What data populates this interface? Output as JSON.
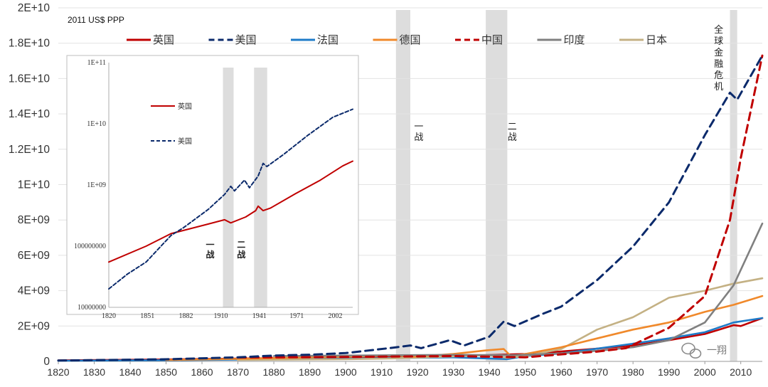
{
  "chart_data": {
    "type": "line",
    "title": "",
    "unit_label": "2011 US$ PPP",
    "xlim": [
      1820,
      2016
    ],
    "ylim": [
      0,
      20000000000
    ],
    "x_ticks": [
      1820,
      1830,
      1840,
      1850,
      1860,
      1870,
      1880,
      1890,
      1900,
      1910,
      1920,
      1930,
      1940,
      1950,
      1960,
      1970,
      1980,
      1990,
      2000,
      2010
    ],
    "y_tick_values": [
      0,
      2000000000,
      4000000000,
      6000000000,
      8000000000,
      10000000000,
      12000000000,
      14000000000,
      16000000000,
      18000000000,
      20000000000
    ],
    "y_tick_labels": [
      "0",
      "2E+09",
      "4E+09",
      "6E+09",
      "8E+09",
      "1E+10",
      "1.2E+10",
      "1.4E+10",
      "1.6E+10",
      "1.8E+10",
      "2E+10"
    ],
    "shaded_periods": [
      {
        "label": "一战",
        "start": 1914,
        "end": 1918
      },
      {
        "label": "二战",
        "start": 1939,
        "end": 1945
      },
      {
        "label": "全球金融危机",
        "start": 2007,
        "end": 2009
      }
    ],
    "series": [
      {
        "name": "英国",
        "color": "#C00000",
        "dash": "solid",
        "points": [
          [
            1820,
            60000000
          ],
          [
            1850,
            110000000
          ],
          [
            1870,
            160000000
          ],
          [
            1900,
            230000000
          ],
          [
            1913,
            270000000
          ],
          [
            1930,
            300000000
          ],
          [
            1950,
            420000000
          ],
          [
            1960,
            560000000
          ],
          [
            1970,
            720000000
          ],
          [
            1980,
            900000000
          ],
          [
            1990,
            1200000000
          ],
          [
            2000,
            1550000000
          ],
          [
            2008,
            2050000000
          ],
          [
            2010,
            2000000000
          ],
          [
            2016,
            2450000000
          ]
        ]
      },
      {
        "name": "美国",
        "color": "#0B2A6B",
        "dash": "dash",
        "points": [
          [
            1820,
            50000000
          ],
          [
            1850,
            120000000
          ],
          [
            1870,
            230000000
          ],
          [
            1880,
            330000000
          ],
          [
            1890,
            380000000
          ],
          [
            1900,
            470000000
          ],
          [
            1913,
            770000000
          ],
          [
            1918,
            900000000
          ],
          [
            1921,
            750000000
          ],
          [
            1929,
            1200000000
          ],
          [
            1933,
            900000000
          ],
          [
            1940,
            1400000000
          ],
          [
            1944,
            2250000000
          ],
          [
            1947,
            2000000000
          ],
          [
            1955,
            2700000000
          ],
          [
            1960,
            3100000000
          ],
          [
            1970,
            4600000000
          ],
          [
            1980,
            6500000000
          ],
          [
            1990,
            9000000000
          ],
          [
            2000,
            12800000000
          ],
          [
            2007,
            15200000000
          ],
          [
            2009,
            14800000000
          ],
          [
            2016,
            17300000000
          ]
        ]
      },
      {
        "name": "法国",
        "color": "#1E7BC8",
        "dash": "solid",
        "points": [
          [
            1820,
            40000000
          ],
          [
            1850,
            70000000
          ],
          [
            1870,
            100000000
          ],
          [
            1900,
            150000000
          ],
          [
            1913,
            190000000
          ],
          [
            1930,
            230000000
          ],
          [
            1945,
            130000000
          ],
          [
            1950,
            300000000
          ],
          [
            1960,
            450000000
          ],
          [
            1970,
            720000000
          ],
          [
            1980,
            1000000000
          ],
          [
            1990,
            1300000000
          ],
          [
            2000,
            1650000000
          ],
          [
            2008,
            2200000000
          ],
          [
            2016,
            2450000000
          ]
        ]
      },
      {
        "name": "德国",
        "color": "#F0892B",
        "dash": "solid",
        "points": [
          [
            1850,
            80000000
          ],
          [
            1870,
            140000000
          ],
          [
            1900,
            260000000
          ],
          [
            1913,
            340000000
          ],
          [
            1919,
            260000000
          ],
          [
            1930,
            420000000
          ],
          [
            1939,
            620000000
          ],
          [
            1944,
            700000000
          ],
          [
            1946,
            300000000
          ],
          [
            1950,
            420000000
          ],
          [
            1960,
            800000000
          ],
          [
            1970,
            1300000000
          ],
          [
            1980,
            1800000000
          ],
          [
            1990,
            2200000000
          ],
          [
            2000,
            2800000000
          ],
          [
            2008,
            3200000000
          ],
          [
            2016,
            3700000000
          ]
        ]
      },
      {
        "name": "中国",
        "color": "#C00000",
        "dash": "dash",
        "points": [
          [
            1870,
            220000000
          ],
          [
            1900,
            250000000
          ],
          [
            1930,
            300000000
          ],
          [
            1950,
            230000000
          ],
          [
            1960,
            400000000
          ],
          [
            1970,
            550000000
          ],
          [
            1978,
            750000000
          ],
          [
            1990,
            1900000000
          ],
          [
            2000,
            3700000000
          ],
          [
            2007,
            8000000000
          ],
          [
            2010,
            11500000000
          ],
          [
            2016,
            17300000000
          ]
        ]
      },
      {
        "name": "印度",
        "color": "#808080",
        "dash": "solid",
        "points": [
          [
            1880,
            300000000
          ],
          [
            1900,
            330000000
          ],
          [
            1930,
            370000000
          ],
          [
            1947,
            350000000
          ],
          [
            1960,
            450000000
          ],
          [
            1970,
            600000000
          ],
          [
            1980,
            800000000
          ],
          [
            1990,
            1200000000
          ],
          [
            2000,
            2200000000
          ],
          [
            2008,
            4300000000
          ],
          [
            2016,
            7800000000
          ]
        ]
      },
      {
        "name": "日本",
        "color": "#C4B184",
        "dash": "solid",
        "points": [
          [
            1870,
            80000000
          ],
          [
            1900,
            120000000
          ],
          [
            1913,
            170000000
          ],
          [
            1940,
            350000000
          ],
          [
            1945,
            200000000
          ],
          [
            1950,
            300000000
          ],
          [
            1960,
            700000000
          ],
          [
            1970,
            1800000000
          ],
          [
            1980,
            2500000000
          ],
          [
            1990,
            3600000000
          ],
          [
            2000,
            4000000000
          ],
          [
            2008,
            4400000000
          ],
          [
            2016,
            4700000000
          ]
        ]
      }
    ],
    "inset": {
      "type": "line",
      "scale": "log",
      "xlim": [
        1820,
        2016
      ],
      "ylim": [
        10000000,
        100000000000
      ],
      "x_ticks": [
        1820,
        1851,
        1882,
        1910,
        1941,
        1971,
        2002
      ],
      "y_tick_values": [
        10000000,
        100000000,
        1000000000,
        10000000000,
        100000000000
      ],
      "y_tick_labels": [
        "10000000",
        "100000000",
        "1E+09",
        "1E+10",
        "1E+11"
      ],
      "shaded_periods": [
        {
          "label": "一战",
          "start": 1914,
          "end": 1918
        },
        {
          "label": "二战",
          "start": 1939,
          "end": 1945
        }
      ],
      "series": [
        {
          "name": "英国",
          "color": "#C00000",
          "dash": "solid",
          "points": [
            [
              1820,
              55000000
            ],
            [
              1850,
              100000000
            ],
            [
              1870,
              160000000
            ],
            [
              1900,
              230000000
            ],
            [
              1913,
              270000000
            ],
            [
              1918,
              240000000
            ],
            [
              1930,
              300000000
            ],
            [
              1938,
              380000000
            ],
            [
              1940,
              450000000
            ],
            [
              1944,
              380000000
            ],
            [
              1950,
              420000000
            ],
            [
              1970,
              720000000
            ],
            [
              1990,
              1200000000
            ],
            [
              2008,
              2050000000
            ],
            [
              2016,
              2450000000
            ]
          ]
        },
        {
          "name": "美国",
          "color": "#0B2A6B",
          "dash": "dash",
          "points": [
            [
              1820,
              20000000
            ],
            [
              1835,
              35000000
            ],
            [
              1850,
              55000000
            ],
            [
              1870,
              150000000
            ],
            [
              1880,
              200000000
            ],
            [
              1900,
              400000000
            ],
            [
              1913,
              700000000
            ],
            [
              1918,
              950000000
            ],
            [
              1921,
              800000000
            ],
            [
              1929,
              1200000000
            ],
            [
              1933,
              900000000
            ],
            [
              1940,
              1400000000
            ],
            [
              1944,
              2250000000
            ],
            [
              1947,
              2000000000
            ],
            [
              1960,
              3100000000
            ],
            [
              1980,
              6500000000
            ],
            [
              2000,
              12800000000
            ],
            [
              2016,
              17300000000
            ]
          ]
        }
      ]
    }
  },
  "watermark": {
    "text": "一翔"
  }
}
